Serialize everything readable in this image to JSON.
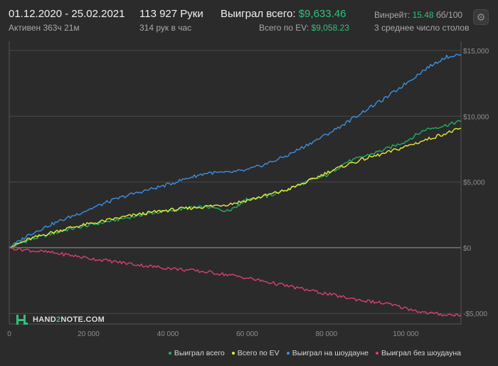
{
  "header": {
    "date_range": "01.12.2020 - 25.02.2021",
    "active": "Активен 363ч 21м",
    "hands": "113 927 Руки",
    "hands_per_hour": "314 рук в час",
    "won_total_label": "Выиграл всего:",
    "won_total_value": "$9,633.46",
    "ev_total_label": "Всего по EV:",
    "ev_total_value": "$9,058.23",
    "winrate_label": "Винрейт:",
    "winrate_value": "15.48",
    "winrate_suffix": "бб/100",
    "avg_tables": "3 среднее число столов"
  },
  "settings": {
    "icon": "gear-icon"
  },
  "logo": {
    "text_a": "HAND",
    "text_b": "2",
    "text_c": "NOTE.COM"
  },
  "colors": {
    "background": "#2b2b2b",
    "won": "#1fae62",
    "ev": "#e8e83a",
    "showdown": "#3b8fe0",
    "non_showdown": "#d6416c"
  },
  "chart_data": {
    "type": "line",
    "x_ticks": [
      0,
      20000,
      40000,
      60000,
      80000,
      100000
    ],
    "x_tick_labels": [
      "0",
      "20 000",
      "40 000",
      "60 000",
      "80 000",
      "100 000"
    ],
    "y_ticks": [
      -5000,
      0,
      5000,
      10000,
      15000
    ],
    "y_tick_labels": [
      "-$5,000",
      "$0",
      "$5,000",
      "$10,000",
      "$15,000"
    ],
    "xlim": [
      0,
      113927
    ],
    "ylim": [
      -5800,
      15700
    ],
    "grid": true,
    "legend_position": "bottom-right",
    "series": [
      {
        "name": "Выиграл всего",
        "color": "#1fae62",
        "x": [
          0,
          5000,
          10000,
          15000,
          20000,
          25000,
          30000,
          35000,
          40000,
          45000,
          50000,
          55000,
          58000,
          60000,
          65000,
          70000,
          75000,
          80000,
          85000,
          90000,
          95000,
          100000,
          105000,
          110000,
          113927
        ],
        "y": [
          0,
          600,
          1000,
          1400,
          1700,
          2000,
          2300,
          2600,
          2800,
          3000,
          3100,
          2800,
          3300,
          3700,
          3900,
          4400,
          5000,
          5500,
          6500,
          7000,
          7500,
          8100,
          9000,
          9300,
          9633
        ]
      },
      {
        "name": "Всего по EV",
        "color": "#e8e83a",
        "x": [
          0,
          5000,
          10000,
          15000,
          20000,
          25000,
          30000,
          35000,
          40000,
          45000,
          50000,
          55000,
          60000,
          65000,
          70000,
          75000,
          80000,
          85000,
          90000,
          95000,
          100000,
          105000,
          110000,
          113927
        ],
        "y": [
          0,
          650,
          1100,
          1500,
          1800,
          2100,
          2400,
          2650,
          2850,
          3000,
          3150,
          3300,
          3600,
          4000,
          4400,
          5000,
          5700,
          6300,
          6800,
          7200,
          7700,
          8200,
          8700,
          9058
        ]
      },
      {
        "name": "Выиграл на шоудауне",
        "color": "#3b8fe0",
        "x": [
          0,
          5000,
          10000,
          15000,
          20000,
          25000,
          30000,
          35000,
          40000,
          45000,
          50000,
          55000,
          60000,
          65000,
          70000,
          75000,
          80000,
          85000,
          90000,
          95000,
          100000,
          105000,
          110000,
          113927
        ],
        "y": [
          0,
          1000,
          1700,
          2300,
          2900,
          3500,
          4000,
          4400,
          4800,
          5300,
          5700,
          5700,
          5900,
          6400,
          7000,
          7800,
          8600,
          9500,
          10500,
          11400,
          12500,
          13600,
          14500,
          14700
        ]
      },
      {
        "name": "Выиграл без шоудауна",
        "color": "#d6416c",
        "x": [
          0,
          5000,
          10000,
          15000,
          20000,
          25000,
          30000,
          35000,
          40000,
          45000,
          50000,
          55000,
          60000,
          65000,
          70000,
          75000,
          80000,
          85000,
          90000,
          95000,
          100000,
          105000,
          110000,
          113927
        ],
        "y": [
          0,
          -200,
          -350,
          -550,
          -800,
          -1000,
          -1200,
          -1400,
          -1550,
          -1700,
          -1850,
          -2050,
          -2300,
          -2600,
          -2900,
          -3200,
          -3500,
          -3800,
          -4050,
          -4250,
          -4600,
          -4950,
          -5100,
          -5100
        ]
      }
    ]
  }
}
